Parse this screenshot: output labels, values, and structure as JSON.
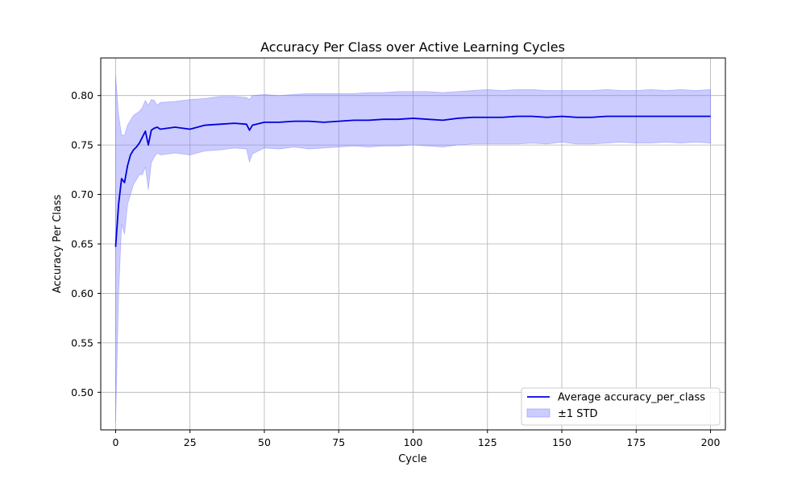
{
  "chart_data": {
    "type": "line",
    "title": "Accuracy Per Class over Active Learning Cycles",
    "xlabel": "Cycle",
    "ylabel": "Accuracy Per Class",
    "xlim": [
      -5,
      205
    ],
    "ylim": [
      0.462,
      0.838
    ],
    "xticks": [
      0,
      25,
      50,
      75,
      100,
      125,
      150,
      175,
      200
    ],
    "yticks": [
      0.5,
      0.55,
      0.6,
      0.65,
      0.7,
      0.75,
      0.8
    ],
    "grid": true,
    "legend_position": "lower-right",
    "series": [
      {
        "name": "Average accuracy_per_class",
        "role": "mean",
        "color": "#0000dd",
        "x": [
          0,
          1,
          2,
          3,
          4,
          5,
          6,
          7,
          8,
          9,
          10,
          11,
          12,
          13,
          14,
          15,
          20,
          25,
          30,
          35,
          40,
          44,
          45,
          46,
          50,
          55,
          60,
          65,
          70,
          75,
          80,
          85,
          90,
          95,
          100,
          105,
          110,
          115,
          120,
          125,
          130,
          135,
          140,
          145,
          150,
          155,
          160,
          165,
          170,
          175,
          180,
          185,
          190,
          195,
          200
        ],
        "y": [
          0.647,
          0.69,
          0.716,
          0.712,
          0.729,
          0.74,
          0.745,
          0.748,
          0.752,
          0.758,
          0.764,
          0.75,
          0.765,
          0.767,
          0.768,
          0.766,
          0.768,
          0.766,
          0.77,
          0.771,
          0.772,
          0.771,
          0.765,
          0.77,
          0.773,
          0.773,
          0.774,
          0.774,
          0.773,
          0.774,
          0.775,
          0.775,
          0.776,
          0.776,
          0.777,
          0.776,
          0.775,
          0.777,
          0.778,
          0.778,
          0.778,
          0.779,
          0.779,
          0.778,
          0.779,
          0.778,
          0.778,
          0.779,
          0.779,
          0.779,
          0.779,
          0.779,
          0.779,
          0.779,
          0.779
        ]
      },
      {
        "name": "±1 STD",
        "role": "band",
        "color": "#8080ff",
        "x": [
          0,
          1,
          2,
          3,
          4,
          5,
          6,
          7,
          8,
          9,
          10,
          11,
          12,
          13,
          14,
          15,
          20,
          25,
          30,
          35,
          40,
          44,
          45,
          46,
          50,
          55,
          60,
          65,
          70,
          75,
          80,
          85,
          90,
          95,
          100,
          105,
          110,
          115,
          120,
          125,
          130,
          135,
          140,
          145,
          150,
          155,
          160,
          165,
          170,
          175,
          180,
          185,
          190,
          195,
          200
        ],
        "upper": [
          0.82,
          0.78,
          0.76,
          0.76,
          0.77,
          0.775,
          0.78,
          0.782,
          0.784,
          0.788,
          0.795,
          0.79,
          0.796,
          0.795,
          0.79,
          0.793,
          0.794,
          0.796,
          0.797,
          0.799,
          0.799,
          0.798,
          0.796,
          0.8,
          0.801,
          0.8,
          0.801,
          0.802,
          0.802,
          0.802,
          0.802,
          0.803,
          0.803,
          0.804,
          0.804,
          0.804,
          0.803,
          0.804,
          0.805,
          0.806,
          0.805,
          0.806,
          0.806,
          0.805,
          0.805,
          0.805,
          0.805,
          0.806,
          0.805,
          0.805,
          0.806,
          0.805,
          0.806,
          0.805,
          0.806
        ],
        "lower": [
          0.47,
          0.6,
          0.67,
          0.66,
          0.69,
          0.7,
          0.71,
          0.715,
          0.72,
          0.72,
          0.728,
          0.705,
          0.732,
          0.738,
          0.742,
          0.74,
          0.742,
          0.74,
          0.744,
          0.745,
          0.747,
          0.746,
          0.733,
          0.741,
          0.747,
          0.746,
          0.748,
          0.746,
          0.747,
          0.748,
          0.749,
          0.748,
          0.749,
          0.749,
          0.75,
          0.749,
          0.748,
          0.75,
          0.751,
          0.751,
          0.751,
          0.751,
          0.752,
          0.751,
          0.753,
          0.751,
          0.751,
          0.752,
          0.753,
          0.752,
          0.752,
          0.753,
          0.752,
          0.753,
          0.752
        ]
      }
    ]
  }
}
